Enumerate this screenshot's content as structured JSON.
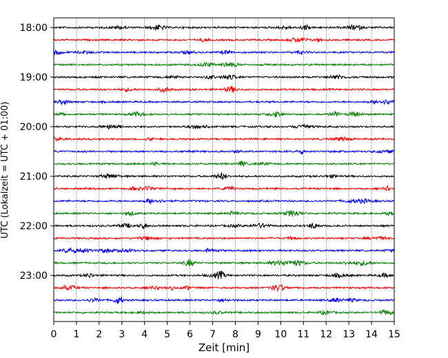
{
  "chart_data": {
    "type": "line",
    "chart_kind": "helicorder / seismogram drum plot",
    "title": "",
    "xlabel": "Zeit  [min]",
    "ylabel": "UTC (Lokalzeit = UTC + 01:00)",
    "xlim": [
      0,
      15
    ],
    "x_ticks": [
      0,
      1,
      2,
      3,
      4,
      5,
      6,
      7,
      8,
      9,
      10,
      11,
      12,
      13,
      14,
      15
    ],
    "x_tick_labels": [
      "0",
      "1",
      "2",
      "3",
      "4",
      "5",
      "6",
      "7",
      "8",
      "9",
      "10",
      "11",
      "12",
      "13",
      "14",
      "15"
    ],
    "x_grid": "dotted vertical lines at every minute",
    "y_tick_labels": [
      "18:00",
      "19:00",
      "20:00",
      "21:00",
      "22:00",
      "23:00"
    ],
    "traces_per_hour": 4,
    "trace_minutes": 15,
    "trace_color_cycle": [
      "#000000",
      "#ff0000",
      "#0000ff",
      "#008000"
    ],
    "traces": [
      {
        "start": "18:00",
        "color": "#000000"
      },
      {
        "start": "18:15",
        "color": "#ff0000"
      },
      {
        "start": "18:30",
        "color": "#0000ff"
      },
      {
        "start": "18:45",
        "color": "#008000"
      },
      {
        "start": "19:00",
        "color": "#000000"
      },
      {
        "start": "19:15",
        "color": "#ff0000"
      },
      {
        "start": "19:30",
        "color": "#0000ff"
      },
      {
        "start": "19:45",
        "color": "#008000"
      },
      {
        "start": "20:00",
        "color": "#000000"
      },
      {
        "start": "20:15",
        "color": "#ff0000"
      },
      {
        "start": "20:30",
        "color": "#0000ff"
      },
      {
        "start": "20:45",
        "color": "#008000"
      },
      {
        "start": "21:00",
        "color": "#000000"
      },
      {
        "start": "21:15",
        "color": "#ff0000"
      },
      {
        "start": "21:30",
        "color": "#0000ff"
      },
      {
        "start": "21:45",
        "color": "#008000"
      },
      {
        "start": "22:00",
        "color": "#000000"
      },
      {
        "start": "22:15",
        "color": "#ff0000"
      },
      {
        "start": "22:30",
        "color": "#0000ff"
      },
      {
        "start": "22:45",
        "color": "#008000"
      },
      {
        "start": "23:00",
        "color": "#000000"
      },
      {
        "start": "23:15",
        "color": "#ff0000"
      },
      {
        "start": "23:30",
        "color": "#0000ff"
      },
      {
        "start": "23:45",
        "color": "#008000"
      }
    ]
  }
}
